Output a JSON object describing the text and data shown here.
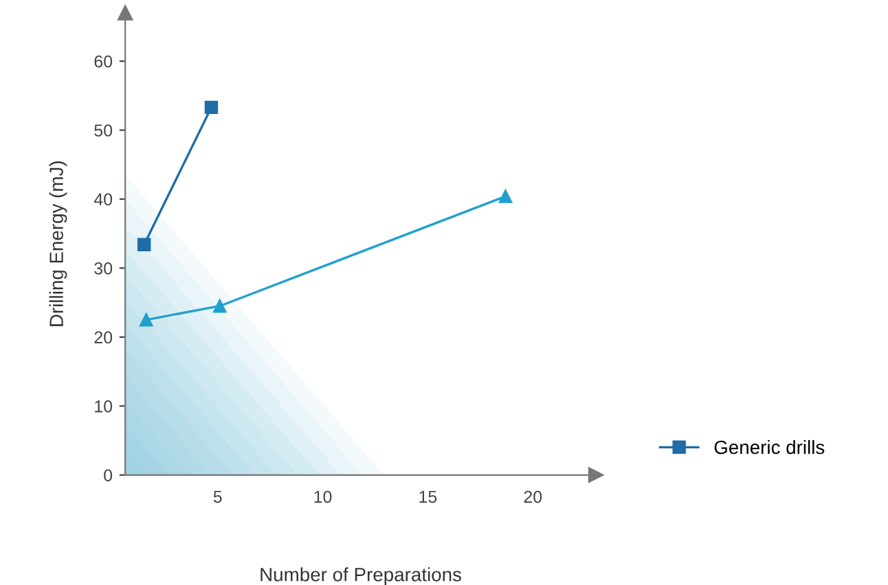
{
  "chart_data": {
    "type": "line",
    "xlabel": "Number of Preparations",
    "ylabel": "Drilling Energy (mJ)",
    "xlim": [
      0.6,
      23
    ],
    "xticks": [
      5,
      10,
      15,
      20
    ],
    "ylim": [
      0,
      67
    ],
    "yticks": [
      0,
      10,
      20,
      30,
      40,
      50,
      60
    ],
    "grid": false,
    "legend": "bottom right",
    "series": [
      {
        "name": "Generic drills",
        "color": "#1f6ca8",
        "marker": "square",
        "x": [
          1.5,
          4.7
        ],
        "values": [
          33.4,
          53.3
        ]
      },
      {
        "color": "#21a0cf",
        "marker": "triangle",
        "x": [
          1.6,
          5.1,
          18.7
        ],
        "values": [
          22.5,
          24.5,
          40.4
        ]
      }
    ]
  }
}
